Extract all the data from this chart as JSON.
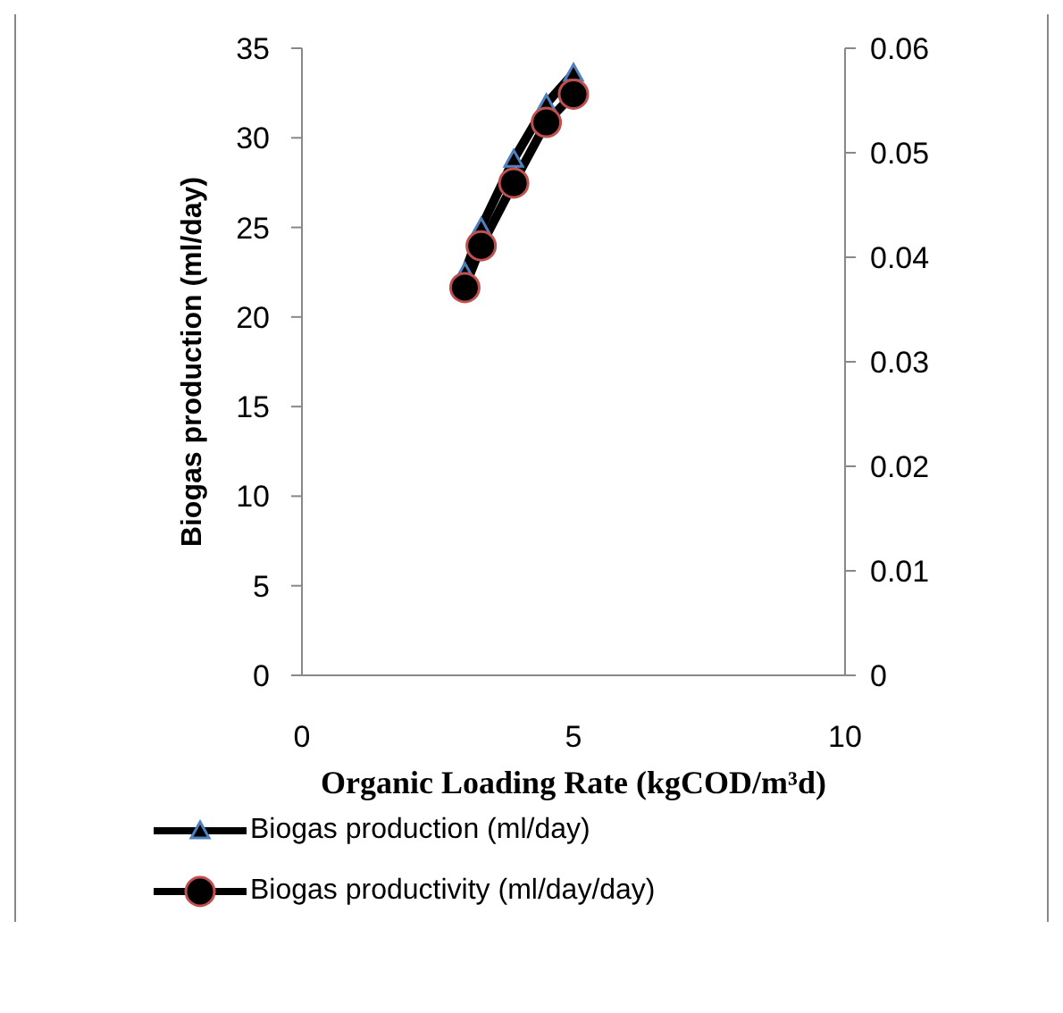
{
  "chart_data": {
    "type": "line",
    "xlabel": "Organic Loading Rate (kgCOD/m³d)",
    "ylabel": "Biogas production (ml/day)",
    "x": [
      3,
      3.3,
      3.9,
      4.5,
      5
    ],
    "series": [
      {
        "name": "Biogas production (ml/day)",
        "color": "#000000",
        "marker": "triangle",
        "values": [
          22.5,
          25.0,
          28.8,
          31.9,
          33.6
        ]
      },
      {
        "name": "Biogas productivity (ml/day/day)",
        "color": "#000000",
        "marker": "circle",
        "axis": "y2",
        "values": [
          0.0371,
          0.0411,
          0.0471,
          0.0529,
          0.0556
        ]
      }
    ],
    "xlim": [
      0,
      10
    ],
    "xticks": [
      0,
      5,
      10
    ],
    "ylim": [
      0,
      35
    ],
    "yticks": [
      0,
      5,
      10,
      15,
      20,
      25,
      30,
      35
    ],
    "y2lim": [
      0,
      0.06
    ],
    "y2ticks": [
      0,
      0.01,
      0.02,
      0.03,
      0.04,
      0.05,
      0.06
    ],
    "grid": false,
    "legend": "bottom"
  }
}
